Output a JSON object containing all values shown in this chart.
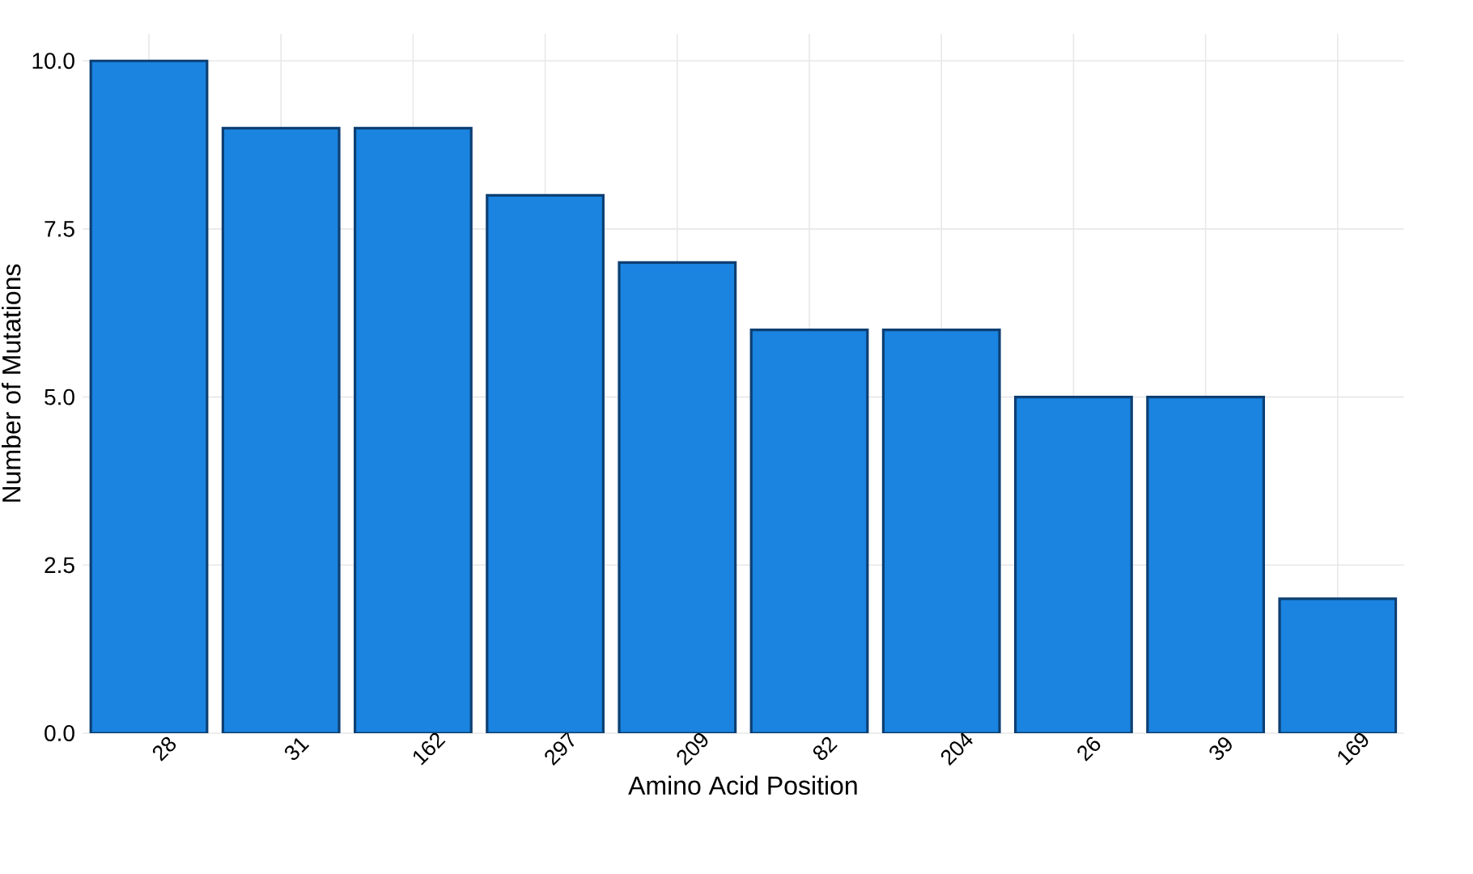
{
  "chart_data": {
    "type": "bar",
    "xlabel": "Amino Acid Position",
    "ylabel": "Number of Mutations",
    "categories": [
      "28",
      "31",
      "162",
      "297",
      "209",
      "82",
      "204",
      "26",
      "39",
      "169"
    ],
    "values": [
      10,
      9,
      9,
      8,
      7,
      6,
      6,
      5,
      5,
      2
    ],
    "color": "#1a84e0",
    "ylim": [
      0,
      10.4
    ],
    "yticks": [
      {
        "value": 0,
        "label": "0.0"
      },
      {
        "value": 2.5,
        "label": "2.5"
      },
      {
        "value": 5,
        "label": "5.0"
      },
      {
        "value": 7.5,
        "label": "7.5"
      },
      {
        "value": 10,
        "label": "10.0"
      }
    ],
    "grid": true
  }
}
